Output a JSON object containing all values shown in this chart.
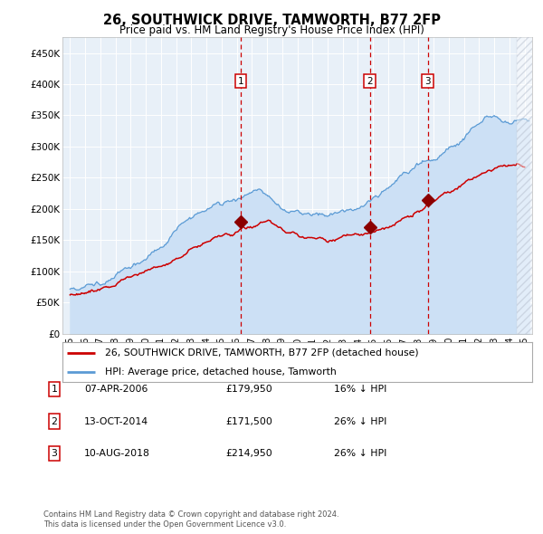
{
  "title": "26, SOUTHWICK DRIVE, TAMWORTH, B77 2FP",
  "subtitle": "Price paid vs. HM Land Registry's House Price Index (HPI)",
  "legend_line1": "26, SOUTHWICK DRIVE, TAMWORTH, B77 2FP (detached house)",
  "legend_line2": "HPI: Average price, detached house, Tamworth",
  "footer_line1": "Contains HM Land Registry data © Crown copyright and database right 2024.",
  "footer_line2": "This data is licensed under the Open Government Licence v3.0.",
  "transactions": [
    {
      "num": 1,
      "date": "07-APR-2006",
      "price": 179950,
      "pct": "16%",
      "dir": "↓"
    },
    {
      "num": 2,
      "date": "13-OCT-2014",
      "price": 171500,
      "pct": "26%",
      "dir": "↓"
    },
    {
      "num": 3,
      "date": "10-AUG-2018",
      "price": 214950,
      "pct": "26%",
      "dir": "↓"
    }
  ],
  "transaction_dates_decimal": [
    2006.27,
    2014.78,
    2018.61
  ],
  "transaction_prices": [
    179950,
    171500,
    214950
  ],
  "hpi_color": "#5b9bd5",
  "hpi_fill_color": "#cce0f5",
  "red_line_color": "#cc0000",
  "marker_color": "#8b0000",
  "vline_color": "#cc0000",
  "bg_color": "#ffffff",
  "plot_bg_color": "#e8f0f8",
  "grid_color": "#ffffff",
  "ylim": [
    0,
    475000
  ],
  "yticks": [
    0,
    50000,
    100000,
    150000,
    200000,
    250000,
    300000,
    350000,
    400000,
    450000
  ],
  "ytick_labels": [
    "£0",
    "£50K",
    "£100K",
    "£150K",
    "£200K",
    "£250K",
    "£300K",
    "£350K",
    "£400K",
    "£450K"
  ],
  "xlim_start": 1994.5,
  "xlim_end": 2025.5,
  "hatch_region_start": 2024.5
}
